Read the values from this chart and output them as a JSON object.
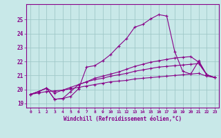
{
  "background_color": "#c8e8e8",
  "grid_color": "#a0c8c8",
  "line_color": "#880088",
  "xlabel": "Windchill (Refroidissement éolien,°C)",
  "xlim": [
    -0.5,
    23.5
  ],
  "ylim": [
    18.7,
    26.1
  ],
  "yticks": [
    19,
    20,
    21,
    22,
    23,
    24,
    25
  ],
  "xticks": [
    0,
    1,
    2,
    3,
    4,
    5,
    6,
    7,
    8,
    9,
    10,
    11,
    12,
    13,
    14,
    15,
    16,
    17,
    18,
    19,
    20,
    21,
    22,
    23
  ],
  "line1_x": [
    0,
    1,
    2,
    3,
    4,
    5,
    6,
    7,
    8,
    9,
    10,
    11,
    12,
    13,
    14,
    15,
    16,
    17,
    18,
    19,
    20,
    21,
    22,
    23
  ],
  "line1_y": [
    19.65,
    19.85,
    20.1,
    19.3,
    19.35,
    19.5,
    20.05,
    21.6,
    21.7,
    22.05,
    22.5,
    23.1,
    23.65,
    24.45,
    24.65,
    25.05,
    25.35,
    25.25,
    22.7,
    21.3,
    21.1,
    22.05,
    21.05,
    20.85
  ],
  "line2_x": [
    0,
    1,
    2,
    3,
    4,
    5,
    6,
    7,
    8,
    9,
    10,
    11,
    12,
    13,
    14,
    15,
    16,
    17,
    18,
    19,
    20,
    21,
    22,
    23
  ],
  "line2_y": [
    19.65,
    19.85,
    20.1,
    19.3,
    19.35,
    19.85,
    20.35,
    20.55,
    20.8,
    20.95,
    21.1,
    21.25,
    21.45,
    21.65,
    21.8,
    21.95,
    22.05,
    22.15,
    22.25,
    22.3,
    22.35,
    21.95,
    21.05,
    20.85
  ],
  "line3_x": [
    0,
    1,
    2,
    3,
    4,
    5,
    6,
    7,
    8,
    9,
    10,
    11,
    12,
    13,
    14,
    15,
    16,
    17,
    18,
    19,
    20,
    21,
    22,
    23
  ],
  "line3_y": [
    19.65,
    19.85,
    20.1,
    19.75,
    19.95,
    20.15,
    20.35,
    20.55,
    20.7,
    20.8,
    20.95,
    21.05,
    21.15,
    21.3,
    21.4,
    21.5,
    21.6,
    21.65,
    21.7,
    21.75,
    21.8,
    21.85,
    21.05,
    20.85
  ],
  "line4_x": [
    0,
    1,
    2,
    3,
    4,
    5,
    6,
    7,
    8,
    9,
    10,
    11,
    12,
    13,
    14,
    15,
    16,
    17,
    18,
    19,
    20,
    21,
    22,
    23
  ],
  "line4_y": [
    19.65,
    19.75,
    19.85,
    19.9,
    19.95,
    20.05,
    20.15,
    20.25,
    20.35,
    20.45,
    20.55,
    20.6,
    20.65,
    20.75,
    20.8,
    20.85,
    20.9,
    20.95,
    21.0,
    21.05,
    21.1,
    21.15,
    20.95,
    20.85
  ],
  "marker": "+",
  "markersize": 3,
  "linewidth": 0.8
}
